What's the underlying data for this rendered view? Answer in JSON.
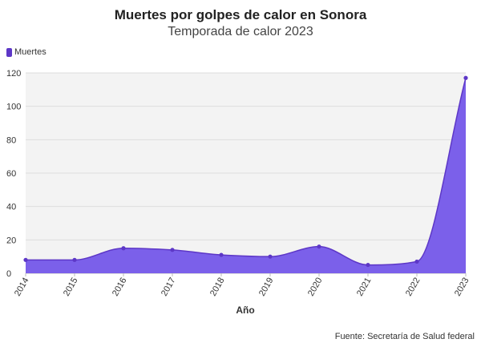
{
  "chart_data": {
    "type": "area",
    "title": "Muertes por golpes de calor en Sonora",
    "subtitle": "Temporada de calor 2023",
    "xlabel": "Año",
    "ylabel": "",
    "x": [
      "2014",
      "2015",
      "2016",
      "2017",
      "2018",
      "2019",
      "2020",
      "2021",
      "2022",
      "2023"
    ],
    "series": [
      {
        "name": "Muertes",
        "values": [
          8,
          8,
          15,
          14,
          11,
          10,
          16,
          5,
          7,
          117
        ],
        "color": "#7b60ea",
        "line_color": "#5d37c7"
      }
    ],
    "ylim": [
      0,
      120
    ],
    "yticks": [
      0,
      20,
      40,
      60,
      80,
      100,
      120
    ],
    "grid": true,
    "legend": "top-left",
    "source": "Fuente: Secretaría de Salud federal"
  }
}
